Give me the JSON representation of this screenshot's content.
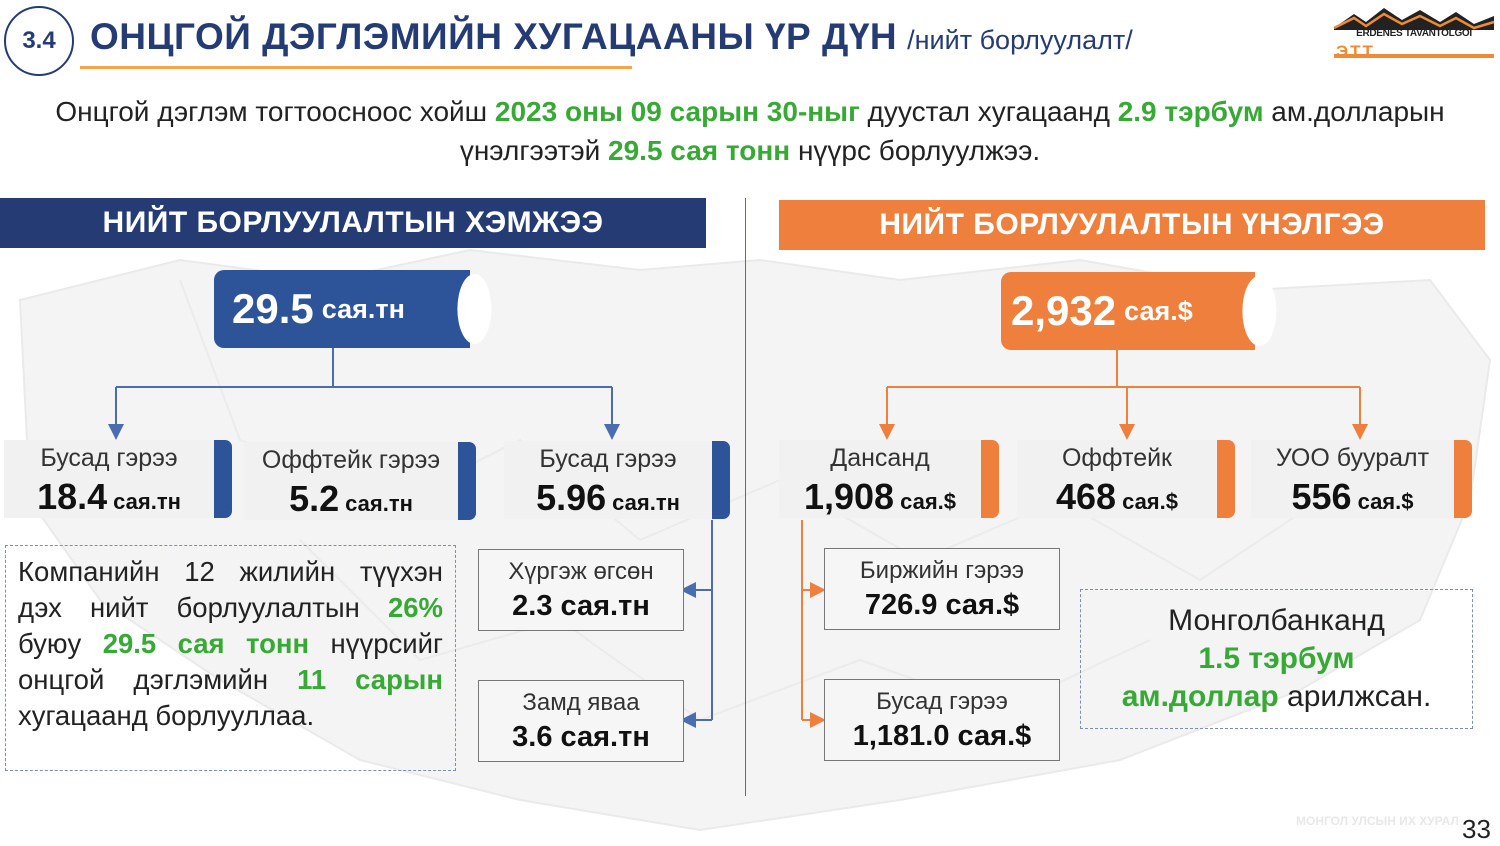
{
  "header": {
    "section_number": "3.4",
    "title": "ОНЦГОЙ ДЭГЛЭМИЙН ХУГАЦААНЫ ҮР ДҮН",
    "subtitle": "/нийт борлуулалт/",
    "logo_text": "ERDENES TAVANTOLGOI",
    "logo_mark": "ЭТТ"
  },
  "intro": {
    "part1": "Онцгой дэглэм тогтоосноос хойш ",
    "date": "2023 оны 09 сарын 30-ныг",
    "part2": " дуустал хугацаанд ",
    "amount": "2.9 тэрбум",
    "part3": " ам.долларын үнэлгээтэй ",
    "volume": "29.5 сая тонн",
    "part4": " нүүрс борлуулжээ."
  },
  "left": {
    "band_title": "НИЙТ БОРЛУУЛАЛТЫН ХЭМЖЭЭ",
    "total_value": "29.5",
    "total_unit": "сая.тн",
    "cards": [
      {
        "label": "Бусад гэрээ",
        "value": "18.4",
        "unit": "сая.тн"
      },
      {
        "label": "Оффтейк гэрээ",
        "value": "5.2",
        "unit": "сая.тн"
      },
      {
        "label": "Бусад гэрээ",
        "value": "5.96",
        "unit": "сая.тн"
      }
    ],
    "sub_boxes": [
      {
        "label": "Хүргэж өгсөн",
        "value": "2.3 сая.тн"
      },
      {
        "label": "Замд яваа",
        "value": "3.6 сая.тн"
      }
    ],
    "note": {
      "t1": "Компанийн 12 жилийн түүхэн дэх нийт борлуулалтын ",
      "pct": "26%",
      "t2": " буюу ",
      "vol": "29.5 сая тонн",
      "t3": " нүүрсийг онцгой дэглэмийн ",
      "months": "11 сарын",
      "t4": " хугацаанд борлууллаа."
    }
  },
  "right": {
    "band_title": "НИЙТ БОРЛУУЛАЛТЫН ҮНЭЛГЭЭ",
    "total_value": "2,932",
    "total_unit": "сая.$",
    "cards": [
      {
        "label": "Дансанд",
        "value": "1,908",
        "unit": "сая.$"
      },
      {
        "label": "Оффтейк",
        "value": "468",
        "unit": "сая.$"
      },
      {
        "label": "УОО бууралт",
        "value": "556",
        "unit": "сая.$"
      }
    ],
    "sub_boxes": [
      {
        "label": "Биржийн гэрээ",
        "value": "726.9 сая.$"
      },
      {
        "label": "Бусад гэрээ",
        "value": "1,181.0 сая.$"
      }
    ],
    "note": {
      "t1": "Монголбанканд",
      "amount": "1.5 тэрбум",
      "usd": "ам.доллар",
      "t2": " арилжсан."
    }
  },
  "footer": {
    "page_number": "33",
    "watermark": "МОНГОЛ УЛСЫН ИХ ХУРАЛ"
  },
  "colors": {
    "navy": "#243b73",
    "blue": "#2d5399",
    "orange": "#ef7f3c",
    "green": "#37a935",
    "gold": "#f2a649"
  }
}
